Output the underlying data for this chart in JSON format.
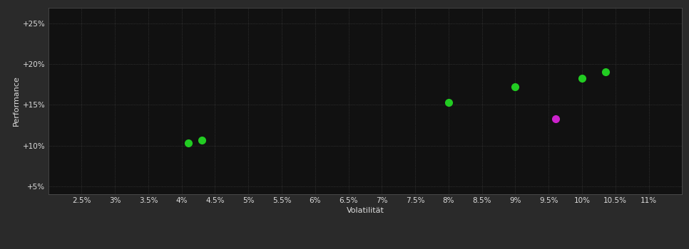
{
  "background_color": "#2a2a2a",
  "plot_bg_color": "#111111",
  "grid_color": "#444444",
  "text_color": "#dddddd",
  "xlabel": "Volatilität",
  "ylabel": "Performance",
  "xlim": [
    0.02,
    0.115
  ],
  "ylim": [
    0.04,
    0.27
  ],
  "xticks": [
    0.025,
    0.03,
    0.035,
    0.04,
    0.045,
    0.05,
    0.055,
    0.06,
    0.065,
    0.07,
    0.075,
    0.08,
    0.085,
    0.09,
    0.095,
    0.1,
    0.105,
    0.11
  ],
  "yticks": [
    0.05,
    0.1,
    0.15,
    0.2,
    0.25
  ],
  "green_points": [
    [
      0.041,
      0.103
    ],
    [
      0.043,
      0.107
    ],
    [
      0.08,
      0.153
    ],
    [
      0.09,
      0.172
    ],
    [
      0.1,
      0.183
    ],
    [
      0.1035,
      0.191
    ]
  ],
  "magenta_points": [
    [
      0.096,
      0.133
    ]
  ],
  "green_color": "#22cc22",
  "magenta_color": "#cc22cc",
  "marker_size": 7,
  "font_size_labels": 8,
  "font_size_ticks": 7.5
}
